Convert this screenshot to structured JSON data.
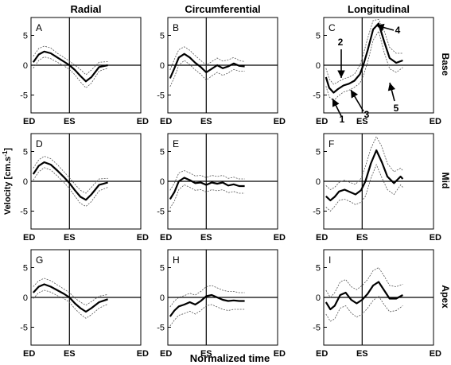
{
  "chart_data": {
    "type": "line",
    "columns": [
      "Radial",
      "Circumferential",
      "Longitudinal"
    ],
    "rows": [
      "Base",
      "Mid",
      "Apex"
    ],
    "ylabel": "Velocity [cm.s",
    "ylabel_sup": "-1",
    "ylabel_end": "]",
    "xlabel": "Normalized time",
    "x_ticks": [
      "ED",
      "ES",
      "ED"
    ],
    "y_ticks": [
      5,
      0,
      -5
    ],
    "xlim": [
      0,
      1
    ],
    "ylim": [
      -8,
      8
    ],
    "es_position": 0.35,
    "panels": [
      {
        "label": "A",
        "row": "Base",
        "column": "Radial",
        "x": [
          0.02,
          0.07,
          0.12,
          0.18,
          0.24,
          0.3,
          0.35,
          0.4,
          0.45,
          0.5,
          0.55,
          0.62,
          0.7
        ],
        "mean": [
          0.5,
          1.8,
          2.3,
          2,
          1.3,
          0.6,
          0,
          -0.8,
          -1.8,
          -2.7,
          -2,
          -0.3,
          0
        ],
        "upper": [
          1.5,
          2.8,
          3.2,
          2.9,
          2,
          1.3,
          0.7,
          0,
          -0.7,
          -1.6,
          -0.8,
          0.5,
          0.6
        ],
        "lower": [
          -0.5,
          0.8,
          1.4,
          1.1,
          0.5,
          -0.1,
          -0.7,
          -1.6,
          -2.8,
          -3.8,
          -3,
          -1,
          -0.5
        ]
      },
      {
        "label": "B",
        "row": "Base",
        "column": "Circumferential",
        "x": [
          0.02,
          0.06,
          0.1,
          0.15,
          0.2,
          0.25,
          0.3,
          0.35,
          0.4,
          0.45,
          0.5,
          0.55,
          0.6,
          0.65,
          0.7
        ],
        "mean": [
          -2.2,
          -0.5,
          1.3,
          1.9,
          1.3,
          0.4,
          -0.3,
          -1.2,
          -0.6,
          0,
          -0.5,
          -0.2,
          0.3,
          -0.1,
          -0.2
        ],
        "upper": [
          -0.8,
          1,
          2.6,
          3.1,
          2.5,
          1.6,
          0.8,
          0,
          0.6,
          1.2,
          0.7,
          0.9,
          1.3,
          0.8,
          0.6
        ],
        "lower": [
          -3.6,
          -2,
          0,
          0.8,
          0.1,
          -0.8,
          -1.5,
          -2.5,
          -1.8,
          -1.2,
          -1.7,
          -1.3,
          -0.7,
          -1,
          -1
        ]
      },
      {
        "label": "C",
        "row": "Base",
        "column": "Longitudinal",
        "x": [
          0.02,
          0.05,
          0.09,
          0.13,
          0.18,
          0.23,
          0.28,
          0.33,
          0.36,
          0.4,
          0.45,
          0.5,
          0.55,
          0.6,
          0.66,
          0.72
        ],
        "mean": [
          -2,
          -3.8,
          -4.6,
          -4,
          -3.4,
          -3.1,
          -2.6,
          -1.5,
          0,
          2.5,
          6,
          7,
          4,
          1.2,
          0.4,
          0.8
        ],
        "upper": [
          -0.5,
          -2.3,
          -3.2,
          -2.8,
          -2.3,
          -2,
          -1.5,
          0,
          1.8,
          4.5,
          7.5,
          7.7,
          5.8,
          3,
          2,
          2
        ],
        "lower": [
          -3.5,
          -5.3,
          -6,
          -5.2,
          -4.5,
          -4.2,
          -3.7,
          -3,
          -1.8,
          0.5,
          4.2,
          5.7,
          2.2,
          -0.6,
          -1.2,
          -0.4
        ]
      },
      {
        "label": "D",
        "row": "Mid",
        "column": "Radial",
        "x": [
          0.02,
          0.07,
          0.12,
          0.18,
          0.24,
          0.3,
          0.35,
          0.4,
          0.45,
          0.5,
          0.55,
          0.62,
          0.7
        ],
        "mean": [
          1.2,
          2.6,
          3.2,
          2.8,
          1.8,
          0.7,
          -0.3,
          -1.5,
          -2.6,
          -3.1,
          -2.2,
          -0.6,
          -0.2
        ],
        "upper": [
          2.2,
          3.6,
          4.2,
          3.8,
          2.8,
          1.6,
          0.6,
          -0.5,
          -1.5,
          -2,
          -1,
          0.4,
          0.5
        ],
        "lower": [
          0.2,
          1.6,
          2.3,
          1.9,
          0.9,
          -0.2,
          -1.2,
          -2.5,
          -3.7,
          -4.2,
          -3.4,
          -1.6,
          -1
        ]
      },
      {
        "label": "E",
        "row": "Mid",
        "column": "Circumferential",
        "x": [
          0.02,
          0.06,
          0.1,
          0.15,
          0.2,
          0.25,
          0.3,
          0.35,
          0.4,
          0.45,
          0.5,
          0.55,
          0.6,
          0.65,
          0.7
        ],
        "mean": [
          -3,
          -1.8,
          0,
          0.6,
          0.2,
          -0.3,
          -0.2,
          -0.6,
          -0.2,
          -0.4,
          -0.2,
          -0.7,
          -0.5,
          -0.8,
          -0.8
        ],
        "upper": [
          -1.5,
          -0.3,
          1.4,
          1.8,
          1.4,
          0.9,
          1,
          0.6,
          1,
          0.8,
          1,
          0.5,
          0.7,
          0.4,
          0.4
        ],
        "lower": [
          -4.5,
          -3.3,
          -1.4,
          -0.6,
          -1,
          -1.5,
          -1.4,
          -1.8,
          -1.4,
          -1.6,
          -1.4,
          -1.9,
          -1.7,
          -2,
          -2
        ]
      },
      {
        "label": "F",
        "row": "Mid",
        "column": "Longitudinal",
        "x": [
          0.02,
          0.06,
          0.1,
          0.14,
          0.19,
          0.24,
          0.29,
          0.34,
          0.38,
          0.43,
          0.48,
          0.53,
          0.58,
          0.64,
          0.7,
          0.72
        ],
        "mean": [
          -2.5,
          -3.2,
          -2.6,
          -1.7,
          -1.4,
          -1.8,
          -2.2,
          -1.5,
          0,
          3,
          5.2,
          3.2,
          0.8,
          -0.3,
          0.8,
          0.4
        ],
        "upper": [
          -0.7,
          -1.4,
          -1,
          -0.2,
          0.2,
          -0.2,
          -0.5,
          0.5,
          2.5,
          5.5,
          7.5,
          5.8,
          3,
          1.6,
          2.2,
          1.8
        ],
        "lower": [
          -4.3,
          -5,
          -4.2,
          -3.2,
          -3,
          -3.4,
          -3.9,
          -3.5,
          -2.5,
          0.5,
          2.8,
          0.6,
          -1.4,
          -2.2,
          -0.6,
          -1
        ]
      },
      {
        "label": "G",
        "row": "Apex",
        "column": "Radial",
        "x": [
          0.02,
          0.07,
          0.12,
          0.18,
          0.24,
          0.3,
          0.35,
          0.4,
          0.45,
          0.5,
          0.55,
          0.62,
          0.7
        ],
        "mean": [
          0.8,
          1.8,
          2.2,
          1.8,
          1.2,
          0.6,
          0,
          -1,
          -1.8,
          -2.4,
          -1.8,
          -0.8,
          -0.3
        ],
        "upper": [
          1.8,
          2.8,
          3.2,
          2.8,
          2.1,
          1.4,
          0.8,
          -0.1,
          -0.8,
          -1.3,
          -0.7,
          0.2,
          0.5
        ],
        "lower": [
          -0.2,
          0.8,
          1.2,
          0.9,
          0.3,
          -0.2,
          -0.8,
          -1.9,
          -2.8,
          -3.5,
          -2.9,
          -1.8,
          -1.1
        ]
      },
      {
        "label": "H",
        "row": "Apex",
        "column": "Circumferential",
        "x": [
          0.02,
          0.06,
          0.1,
          0.15,
          0.2,
          0.25,
          0.3,
          0.35,
          0.4,
          0.45,
          0.5,
          0.55,
          0.6,
          0.65,
          0.7
        ],
        "mean": [
          -3.2,
          -2.2,
          -1.5,
          -1.2,
          -0.8,
          -1.2,
          -0.6,
          0.2,
          0.4,
          0,
          -0.4,
          -0.6,
          -0.5,
          -0.6,
          -0.6
        ],
        "upper": [
          -1.6,
          -0.6,
          0,
          0.3,
          0.7,
          0.4,
          1,
          1.8,
          2,
          1.6,
          1.2,
          1,
          1,
          0.8,
          0.8
        ],
        "lower": [
          -4.8,
          -3.8,
          -3,
          -2.7,
          -2.3,
          -2.8,
          -2.2,
          -1.4,
          -1.2,
          -1.6,
          -2,
          -2.2,
          -2,
          -2,
          -2
        ]
      },
      {
        "label": "I",
        "row": "Apex",
        "column": "Longitudinal",
        "x": [
          0.02,
          0.06,
          0.1,
          0.15,
          0.2,
          0.25,
          0.3,
          0.35,
          0.4,
          0.45,
          0.5,
          0.55,
          0.6,
          0.66,
          0.72
        ],
        "mean": [
          -0.8,
          -2,
          -1.4,
          0.4,
          0.8,
          -0.4,
          -1,
          -0.4,
          0.6,
          2,
          2.6,
          1.2,
          -0.2,
          -0.2,
          0.4
        ],
        "upper": [
          1.2,
          0,
          0.8,
          2.6,
          3,
          1.8,
          1.3,
          2,
          3,
          4.5,
          5,
          3.6,
          2,
          1.8,
          2.2
        ],
        "lower": [
          -2.8,
          -4,
          -3.6,
          -1.8,
          -1.4,
          -2.6,
          -3.3,
          -2.8,
          -1.8,
          -0.5,
          0.2,
          -1.2,
          -2.4,
          -2.2,
          -1.4
        ]
      }
    ],
    "annotations": [
      "1",
      "2",
      "3",
      "4",
      "5"
    ]
  }
}
